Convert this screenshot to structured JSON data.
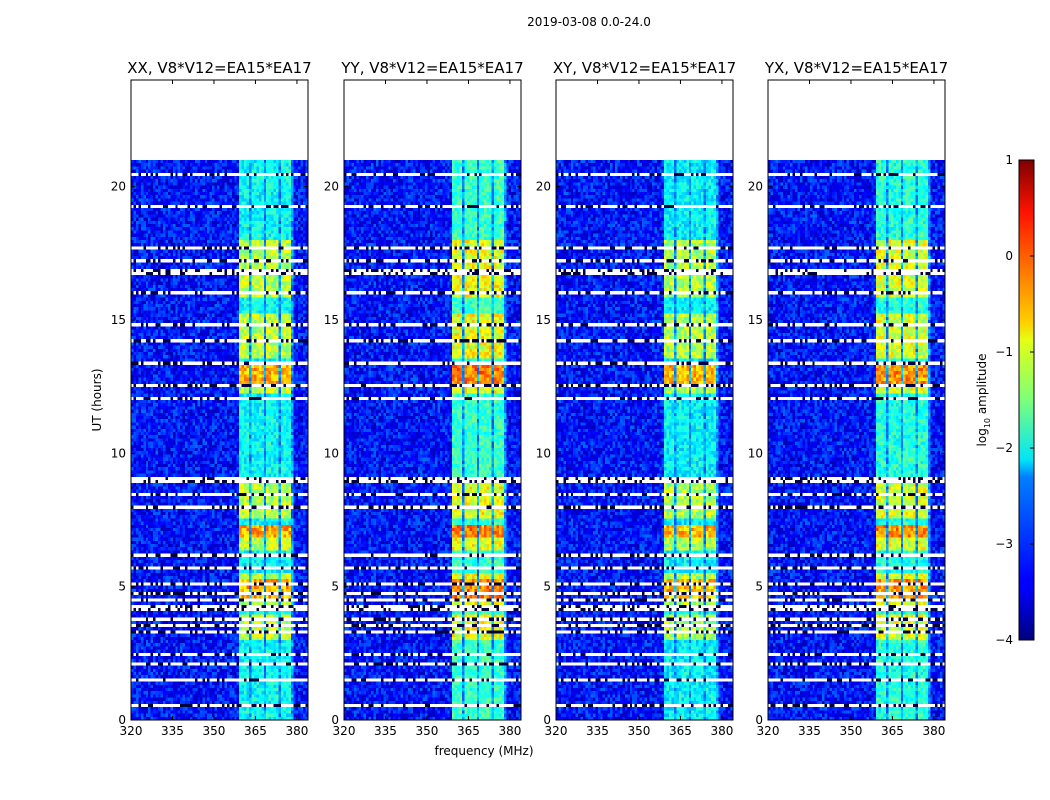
{
  "chart_data": {
    "type": "heatmap",
    "suptitle": "2019-03-08 0.0-24.0",
    "panels": [
      {
        "title": "XX, V8*V12=EA15*EA17",
        "pol": "XX"
      },
      {
        "title": "YY, V8*V12=EA15*EA17",
        "pol": "YY"
      },
      {
        "title": "XY, V8*V12=EA15*EA17",
        "pol": "XY"
      },
      {
        "title": "YX, V8*V12=EA15*EA17",
        "pol": "YX"
      }
    ],
    "xlabel": "frequency (MHz)",
    "ylabel": "UT (hours)",
    "xlim": [
      320,
      384
    ],
    "ylim": [
      0,
      24
    ],
    "xticks": [
      320,
      335,
      350,
      365,
      380
    ],
    "yticks": [
      0,
      5,
      10,
      15,
      20
    ],
    "data_extent_hours": [
      0,
      21
    ],
    "rfi_band_mhz": [
      359,
      379
    ],
    "rfi_subbands_mhz": [
      [
        359,
        363
      ],
      [
        364,
        368
      ],
      [
        369,
        373
      ],
      [
        374,
        378
      ]
    ],
    "rfi_bright_periods_hours": [
      [
        3.0,
        4.0
      ],
      [
        4.2,
        5.5
      ],
      [
        6.3,
        7.3
      ],
      [
        7.6,
        9.0
      ],
      [
        12.3,
        13.3
      ],
      [
        13.6,
        15.2
      ],
      [
        15.8,
        18.0
      ]
    ],
    "flagged_rows_hours": [
      0.5,
      1.5,
      2.1,
      2.45,
      3.25,
      3.55,
      3.8,
      4.1,
      4.3,
      4.5,
      4.7,
      5.05,
      5.7,
      6.2,
      6.6,
      8.0,
      8.5,
      9.0,
      12.1,
      12.5,
      13.4,
      14.2,
      14.8,
      16.0,
      16.8,
      17.2,
      17.7,
      19.3,
      20.5
    ],
    "colorbar": {
      "label": "log10 amplitude",
      "min": -4,
      "max": 1,
      "ticks": [
        1,
        0,
        -1,
        -2,
        -3,
        -4
      ],
      "colormap": "jet"
    }
  },
  "colors": {
    "background": "#ffffff",
    "frame": "#000000"
  }
}
